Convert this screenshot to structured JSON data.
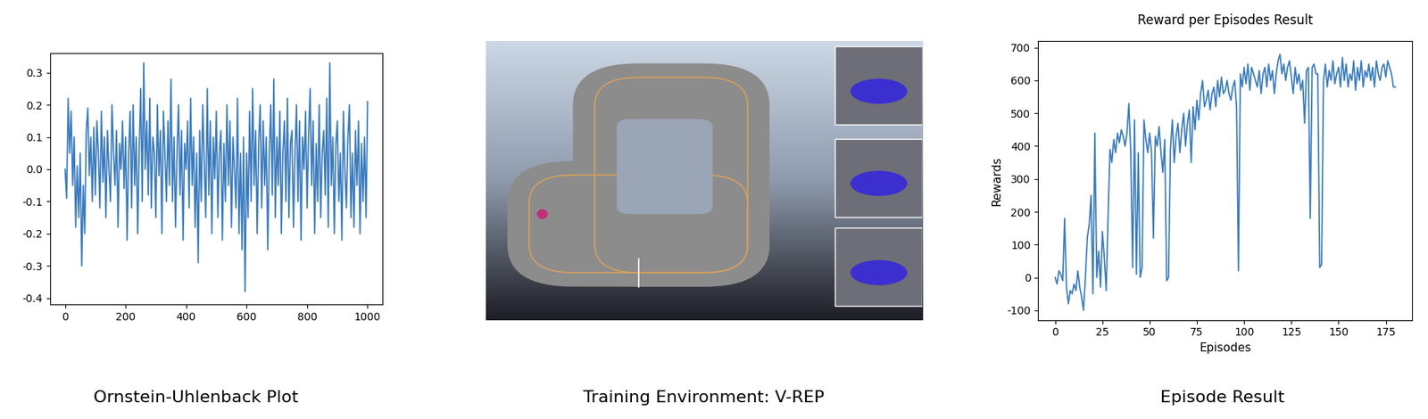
{
  "chart_data": [
    {
      "type": "line",
      "caption": "Ornstein-Uhlenback Plot",
      "color": "#3a7bbf",
      "grid": false,
      "x": [
        0,
        5,
        10,
        15,
        20,
        25,
        30,
        35,
        40,
        45,
        50,
        55,
        60,
        65,
        70,
        75,
        80,
        85,
        90,
        95,
        100,
        105,
        110,
        115,
        120,
        125,
        130,
        135,
        140,
        145,
        150,
        155,
        160,
        165,
        170,
        175,
        180,
        185,
        190,
        195,
        200,
        205,
        210,
        215,
        220,
        225,
        230,
        235,
        240,
        245,
        250,
        255,
        260,
        265,
        270,
        275,
        280,
        285,
        290,
        295,
        300,
        305,
        310,
        315,
        320,
        325,
        330,
        335,
        340,
        345,
        350,
        355,
        360,
        365,
        370,
        375,
        380,
        385,
        390,
        395,
        400,
        405,
        410,
        415,
        420,
        425,
        430,
        435,
        440,
        445,
        450,
        455,
        460,
        465,
        470,
        475,
        480,
        485,
        490,
        495,
        500,
        505,
        510,
        515,
        520,
        525,
        530,
        535,
        540,
        545,
        550,
        555,
        560,
        565,
        570,
        575,
        580,
        585,
        590,
        595,
        600,
        605,
        610,
        615,
        620,
        625,
        630,
        635,
        640,
        645,
        650,
        655,
        660,
        665,
        670,
        675,
        680,
        685,
        690,
        695,
        700,
        705,
        710,
        715,
        720,
        725,
        730,
        735,
        740,
        745,
        750,
        755,
        760,
        765,
        770,
        775,
        780,
        785,
        790,
        795,
        800,
        805,
        810,
        815,
        820,
        825,
        830,
        835,
        840,
        845,
        850,
        855,
        860,
        865,
        870,
        875,
        880,
        885,
        890,
        895,
        900,
        905,
        910,
        915,
        920,
        925,
        930,
        935,
        940,
        945,
        950,
        955,
        960,
        965,
        970,
        975,
        980,
        985,
        990,
        995,
        1000
      ],
      "values": [
        0.0,
        -0.09,
        0.22,
        0.05,
        0.18,
        -0.05,
        0.1,
        -0.18,
        0.01,
        -0.15,
        0.05,
        -0.3,
        -0.05,
        -0.2,
        0.12,
        0.19,
        -0.02,
        0.1,
        -0.1,
        0.13,
        -0.08,
        0.15,
        0.05,
        -0.12,
        0.18,
        -0.04,
        0.1,
        -0.15,
        0.12,
        0.0,
        -0.1,
        0.2,
        0.05,
        -0.05,
        0.12,
        -0.18,
        0.08,
        0.0,
        0.15,
        -0.06,
        0.1,
        -0.22,
        0.05,
        0.18,
        -0.12,
        0.2,
        -0.05,
        0.1,
        -0.2,
        0.06,
        0.25,
        -0.1,
        0.33,
        0.0,
        0.15,
        -0.08,
        0.22,
        -0.12,
        0.1,
        0.05,
        -0.15,
        0.2,
        -0.02,
        0.12,
        -0.2,
        0.18,
        0.05,
        -0.1,
        0.15,
        -0.05,
        0.28,
        -0.1,
        0.1,
        -0.18,
        0.05,
        0.2,
        -0.08,
        0.12,
        -0.22,
        0.08,
        0.0,
        0.15,
        -0.12,
        0.22,
        -0.05,
        0.1,
        -0.18,
        0.05,
        -0.29,
        0.12,
        -0.1,
        0.2,
        0.02,
        -0.15,
        0.25,
        -0.08,
        0.15,
        -0.2,
        0.1,
        -0.03,
        0.18,
        -0.15,
        0.05,
        0.12,
        -0.22,
        0.08,
        -0.1,
        0.2,
        -0.05,
        0.15,
        -0.18,
        0.1,
        0.0,
        -0.12,
        0.22,
        -0.2,
        0.05,
        -0.25,
        0.1,
        -0.38,
        0.05,
        -0.15,
        0.18,
        -0.1,
        0.25,
        -0.05,
        0.12,
        -0.2,
        0.08,
        0.2,
        -0.12,
        0.15,
        -0.05,
        0.1,
        -0.25,
        0.05,
        0.2,
        -0.08,
        0.28,
        -0.15,
        0.1,
        -0.05,
        0.18,
        -0.2,
        0.05,
        0.15,
        -0.1,
        0.22,
        -0.15,
        0.08,
        0.12,
        -0.18,
        0.05,
        0.2,
        -0.1,
        0.15,
        -0.22,
        0.1,
        0.0,
        0.18,
        -0.12,
        0.1,
        0.25,
        -0.05,
        0.15,
        -0.2,
        0.08,
        -0.1,
        0.2,
        -0.15,
        0.05,
        0.12,
        -0.08,
        0.22,
        -0.18,
        0.33,
        -0.05,
        0.1,
        -0.2,
        0.08,
        0.15,
        -0.1,
        0.05,
        -0.22,
        0.18,
        0.0,
        -0.12,
        0.1,
        0.2,
        -0.15,
        0.05,
        -0.18,
        0.12,
        -0.05,
        0.15,
        -0.2,
        0.08,
        -0.1,
        0.1,
        -0.15,
        0.21
      ],
      "xlim": [
        -50,
        1050
      ],
      "ylim": [
        -0.42,
        0.36
      ],
      "xticks": [
        0,
        200,
        400,
        600,
        800,
        1000
      ],
      "yticks": [
        -0.4,
        -0.3,
        -0.2,
        -0.1,
        0.0,
        0.1,
        0.2,
        0.3
      ]
    },
    {
      "type": "line",
      "title": "Reward per Episodes Result",
      "caption": "Episode Result",
      "x_label": "Episodes",
      "y_label": "Rewards",
      "color": "#3a7bbf",
      "grid": false,
      "x": [
        0,
        1,
        2,
        3,
        4,
        5,
        6,
        7,
        8,
        9,
        10,
        11,
        12,
        13,
        14,
        15,
        16,
        17,
        18,
        19,
        20,
        21,
        22,
        23,
        24,
        25,
        26,
        27,
        28,
        29,
        30,
        31,
        32,
        33,
        34,
        35,
        36,
        37,
        38,
        39,
        40,
        41,
        42,
        43,
        44,
        45,
        46,
        47,
        48,
        49,
        50,
        51,
        52,
        53,
        54,
        55,
        56,
        57,
        58,
        59,
        60,
        61,
        62,
        63,
        64,
        65,
        66,
        67,
        68,
        69,
        70,
        71,
        72,
        73,
        74,
        75,
        76,
        77,
        78,
        79,
        80,
        81,
        82,
        83,
        84,
        85,
        86,
        87,
        88,
        89,
        90,
        91,
        92,
        93,
        94,
        95,
        96,
        97,
        98,
        99,
        100,
        101,
        102,
        103,
        104,
        105,
        106,
        107,
        108,
        109,
        110,
        111,
        112,
        113,
        114,
        115,
        116,
        117,
        118,
        119,
        120,
        121,
        122,
        123,
        124,
        125,
        126,
        127,
        128,
        129,
        130,
        131,
        132,
        133,
        134,
        135,
        136,
        137,
        138,
        139,
        140,
        141,
        142,
        143,
        144,
        145,
        146,
        147,
        148,
        149,
        150,
        151,
        152,
        153,
        154,
        155,
        156,
        157,
        158,
        159,
        160,
        161,
        162,
        163,
        164,
        165,
        166,
        167,
        168,
        169,
        170,
        171,
        172,
        173,
        174,
        175,
        176,
        177,
        178,
        179,
        180
      ],
      "values": [
        0,
        -20,
        20,
        10,
        -10,
        180,
        -30,
        -80,
        -40,
        -50,
        -20,
        -40,
        20,
        -30,
        -60,
        -100,
        0,
        120,
        160,
        250,
        -50,
        440,
        0,
        80,
        -30,
        140,
        60,
        -40,
        180,
        390,
        350,
        420,
        380,
        440,
        410,
        450,
        430,
        400,
        440,
        530,
        380,
        30,
        480,
        10,
        380,
        0,
        30,
        480,
        420,
        380,
        440,
        380,
        120,
        430,
        400,
        460,
        380,
        320,
        420,
        -10,
        0,
        390,
        480,
        350,
        430,
        470,
        380,
        450,
        500,
        400,
        470,
        510,
        350,
        520,
        450,
        540,
        480,
        560,
        600,
        520,
        540,
        570,
        510,
        560,
        580,
        520,
        600,
        550,
        610,
        560,
        570,
        600,
        560,
        540,
        580,
        600,
        520,
        20,
        620,
        580,
        640,
        590,
        650,
        570,
        640,
        620,
        600,
        580,
        630,
        560,
        620,
        640,
        580,
        650,
        600,
        630,
        560,
        620,
        660,
        680,
        620,
        650,
        600,
        640,
        660,
        610,
        560,
        640,
        590,
        620,
        570,
        600,
        470,
        630,
        640,
        180,
        640,
        650,
        620,
        620,
        30,
        40,
        600,
        650,
        580,
        630,
        600,
        660,
        590,
        620,
        640,
        580,
        670,
        600,
        650,
        580,
        620,
        600,
        660,
        570,
        640,
        600,
        660,
        580,
        630,
        610,
        650,
        600,
        640,
        580,
        660,
        620,
        600,
        640,
        650,
        610,
        660,
        640,
        620,
        580,
        580
      ],
      "xlim": [
        -9,
        189
      ],
      "ylim": [
        -130,
        720
      ],
      "xticks": [
        0,
        25,
        50,
        75,
        100,
        125,
        150,
        175
      ],
      "yticks": [
        -100,
        0,
        100,
        200,
        300,
        400,
        500,
        600,
        700
      ]
    }
  ],
  "image": {
    "caption": "Training Environment: V-REP"
  }
}
